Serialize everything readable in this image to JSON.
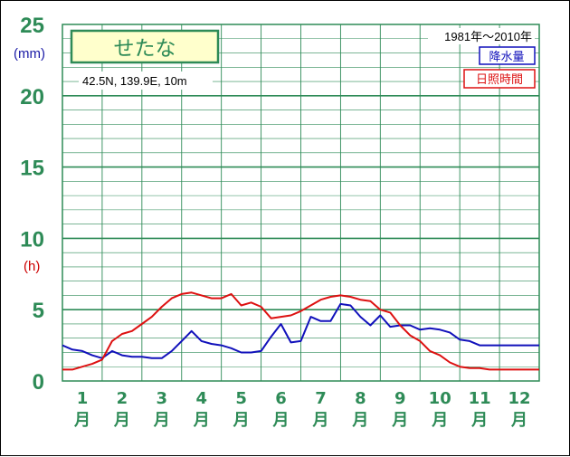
{
  "chart_data": {
    "type": "line",
    "title": "せたな",
    "location": "42.5N,  139.9E,  10m",
    "period": "1981年～2010年",
    "y_ticks": [
      "0",
      "5",
      "10",
      "15",
      "20",
      "25"
    ],
    "ylim": [
      0,
      25
    ],
    "units": {
      "precip": "(mm)",
      "sunshine": "(h)"
    },
    "months": [
      "1",
      "2",
      "3",
      "4",
      "5",
      "6",
      "7",
      "8",
      "9",
      "10",
      "11",
      "12"
    ],
    "month_suffix": "月",
    "x": [
      1.0,
      1.25,
      1.5,
      1.75,
      2.0,
      2.25,
      2.5,
      2.75,
      3.0,
      3.25,
      3.5,
      3.75,
      4.0,
      4.25,
      4.5,
      4.75,
      5.0,
      5.25,
      5.5,
      5.75,
      6.0,
      6.25,
      6.5,
      6.75,
      7.0,
      7.25,
      7.5,
      7.75,
      8.0,
      8.25,
      8.5,
      8.75,
      9.0,
      9.25,
      9.5,
      9.75,
      10.0,
      10.25,
      10.5,
      10.75,
      11.0,
      11.25,
      11.5,
      11.75,
      12.0,
      12.25,
      12.5,
      12.75
    ],
    "series": [
      {
        "name": "降水量",
        "color": "#1111bb",
        "values": [
          2.5,
          2.2,
          2.1,
          1.8,
          1.6,
          2.1,
          1.8,
          1.7,
          1.7,
          1.6,
          1.6,
          2.1,
          2.8,
          3.5,
          2.8,
          2.6,
          2.5,
          2.3,
          2.0,
          2.0,
          2.1,
          3.1,
          4.0,
          2.7,
          2.8,
          4.5,
          4.2,
          4.2,
          5.4,
          5.3,
          4.5,
          3.9,
          4.6,
          3.8,
          3.9,
          3.9,
          3.6,
          3.7,
          3.6,
          3.4,
          2.9,
          2.8,
          2.5,
          2.5,
          2.5,
          2.5,
          2.5,
          2.5
        ]
      },
      {
        "name": "日照時間",
        "color": "#dd1111",
        "values": [
          0.8,
          0.8,
          1.0,
          1.2,
          1.5,
          2.8,
          3.3,
          3.5,
          4.0,
          4.5,
          5.2,
          5.8,
          6.1,
          6.2,
          6.0,
          5.8,
          5.8,
          6.1,
          5.3,
          5.5,
          5.2,
          4.4,
          4.5,
          4.6,
          4.9,
          5.3,
          5.7,
          5.9,
          6.0,
          5.9,
          5.7,
          5.6,
          5.0,
          4.8,
          3.9,
          3.2,
          2.8,
          2.1,
          1.8,
          1.3,
          1.0,
          0.9,
          0.9,
          0.8,
          0.8,
          0.8,
          0.8,
          0.8
        ]
      }
    ]
  }
}
